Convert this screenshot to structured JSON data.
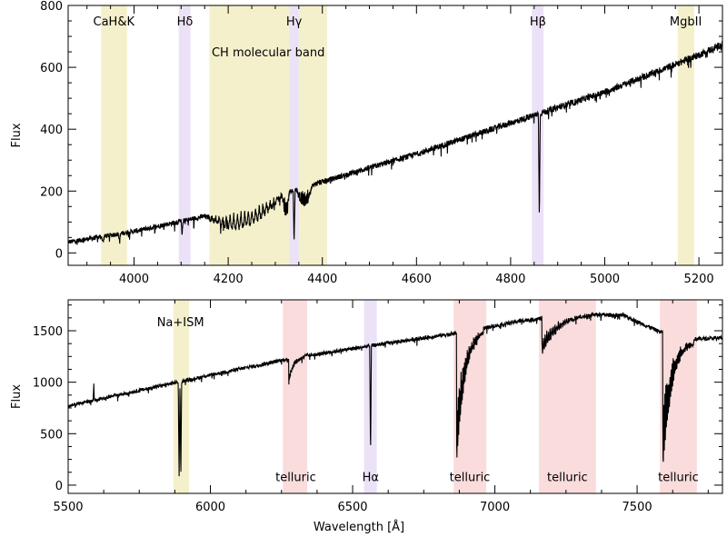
{
  "chart_data": [
    {
      "type": "line",
      "panel": "top",
      "xlabel": "",
      "ylabel": "Flux",
      "xlim": [
        3860,
        5250
      ],
      "ylim": [
        -40,
        800
      ],
      "xticks": [
        4000,
        4200,
        4400,
        4600,
        4800,
        5000,
        5200
      ],
      "yticks": [
        0,
        200,
        400,
        600,
        800
      ],
      "bands": [
        {
          "x0": 3930,
          "x1": 3985,
          "color": "#f4f0cc"
        },
        {
          "x0": 4095,
          "x1": 4120,
          "color": "#ece2f7"
        },
        {
          "x0": 4160,
          "x1": 4410,
          "color": "#f4f0cc"
        },
        {
          "x0": 4330,
          "x1": 4350,
          "color": "#ece2f7"
        },
        {
          "x0": 4845,
          "x1": 4870,
          "color": "#ece2f7"
        },
        {
          "x0": 5155,
          "x1": 5190,
          "color": "#f4f0cc"
        }
      ],
      "annotations": [
        {
          "text": "CaH&K",
          "x": 3957,
          "y": 735
        },
        {
          "text": "Hδ",
          "x": 4108,
          "y": 735
        },
        {
          "text": "Hγ",
          "x": 4340,
          "y": 735
        },
        {
          "text": "CH molecular band",
          "x": 4285,
          "y": 635
        },
        {
          "text": "Hβ",
          "x": 4858,
          "y": 735
        },
        {
          "text": "MgbII",
          "x": 5172,
          "y": 735
        }
      ],
      "continuum": [
        [
          3860,
          35
        ],
        [
          4000,
          70
        ],
        [
          4200,
          135
        ],
        [
          4400,
          230
        ],
        [
          4600,
          320
        ],
        [
          4800,
          420
        ],
        [
          5000,
          520
        ],
        [
          5200,
          640
        ],
        [
          5250,
          675
        ]
      ],
      "absorption_lines": [
        {
          "x": 3934,
          "depth": 20,
          "width": 3
        },
        {
          "x": 3969,
          "depth": 20,
          "width": 3
        },
        {
          "x": 4102,
          "depth": 50,
          "width": 2
        },
        {
          "x": 4340,
          "depth": 170,
          "width": 2
        },
        {
          "x": 4861,
          "depth": 345,
          "width": 2
        }
      ],
      "features": [
        {
          "type": "band",
          "x0": 4150,
          "x1": 4320,
          "depth": 55
        },
        {
          "type": "band",
          "x0": 4315,
          "x1": 4330,
          "depth": 60
        },
        {
          "type": "band",
          "x0": 4345,
          "x1": 4380,
          "depth": 50
        }
      ],
      "noise": 12
    },
    {
      "type": "line",
      "panel": "bottom",
      "xlabel": "Wavelength [Å]",
      "ylabel": "Flux",
      "xlim": [
        5500,
        7800
      ],
      "ylim": [
        -80,
        1800
      ],
      "xticks": [
        5500,
        6000,
        6500,
        7000,
        7500
      ],
      "yticks": [
        0,
        500,
        1000,
        1500
      ],
      "bands": [
        {
          "x0": 5870,
          "x1": 5925,
          "color": "#f4f0cc"
        },
        {
          "x0": 6255,
          "x1": 6340,
          "color": "#fadcdc"
        },
        {
          "x0": 6540,
          "x1": 6585,
          "color": "#ece2f7"
        },
        {
          "x0": 6855,
          "x1": 6970,
          "color": "#fadcdc"
        },
        {
          "x0": 7155,
          "x1": 7355,
          "color": "#fadcdc"
        },
        {
          "x0": 7580,
          "x1": 7710,
          "color": "#fadcdc"
        }
      ],
      "annotations": [
        {
          "text": "Na+ISM",
          "x": 5895,
          "y": 1545
        },
        {
          "text": "telluric",
          "x": 6300,
          "y": 40
        },
        {
          "text": "Hα",
          "x": 6563,
          "y": 40
        },
        {
          "text": "telluric",
          "x": 6912,
          "y": 40
        },
        {
          "text": "telluric",
          "x": 7255,
          "y": 40
        },
        {
          "text": "telluric",
          "x": 7645,
          "y": 40
        }
      ],
      "continuum": [
        [
          5500,
          770
        ],
        [
          5700,
          890
        ],
        [
          6000,
          1070
        ],
        [
          6300,
          1240
        ],
        [
          6600,
          1370
        ],
        [
          6850,
          1470
        ],
        [
          7100,
          1600
        ],
        [
          7300,
          1660
        ],
        [
          7450,
          1650
        ],
        [
          7580,
          1490
        ],
        [
          7700,
          1420
        ],
        [
          7800,
          1430
        ]
      ],
      "absorption_lines": [
        {
          "x": 5890,
          "depth": 960,
          "width": 3
        },
        {
          "x": 5896,
          "depth": 960,
          "width": 3
        },
        {
          "x": 6563,
          "depth": 1080,
          "width": 3
        },
        {
          "x": 5590,
          "depth": -170,
          "width": 2
        }
      ],
      "features": [
        {
          "type": "telluric",
          "x0": 6275,
          "x1": 6330,
          "depth": 250
        },
        {
          "type": "telluric",
          "x0": 6865,
          "x1": 6960,
          "depth": 1300
        },
        {
          "type": "telluric",
          "x0": 7165,
          "x1": 7340,
          "depth": 350
        },
        {
          "type": "telluric",
          "x0": 7590,
          "x1": 7700,
          "depth": 1350
        }
      ],
      "noise": 20
    }
  ]
}
